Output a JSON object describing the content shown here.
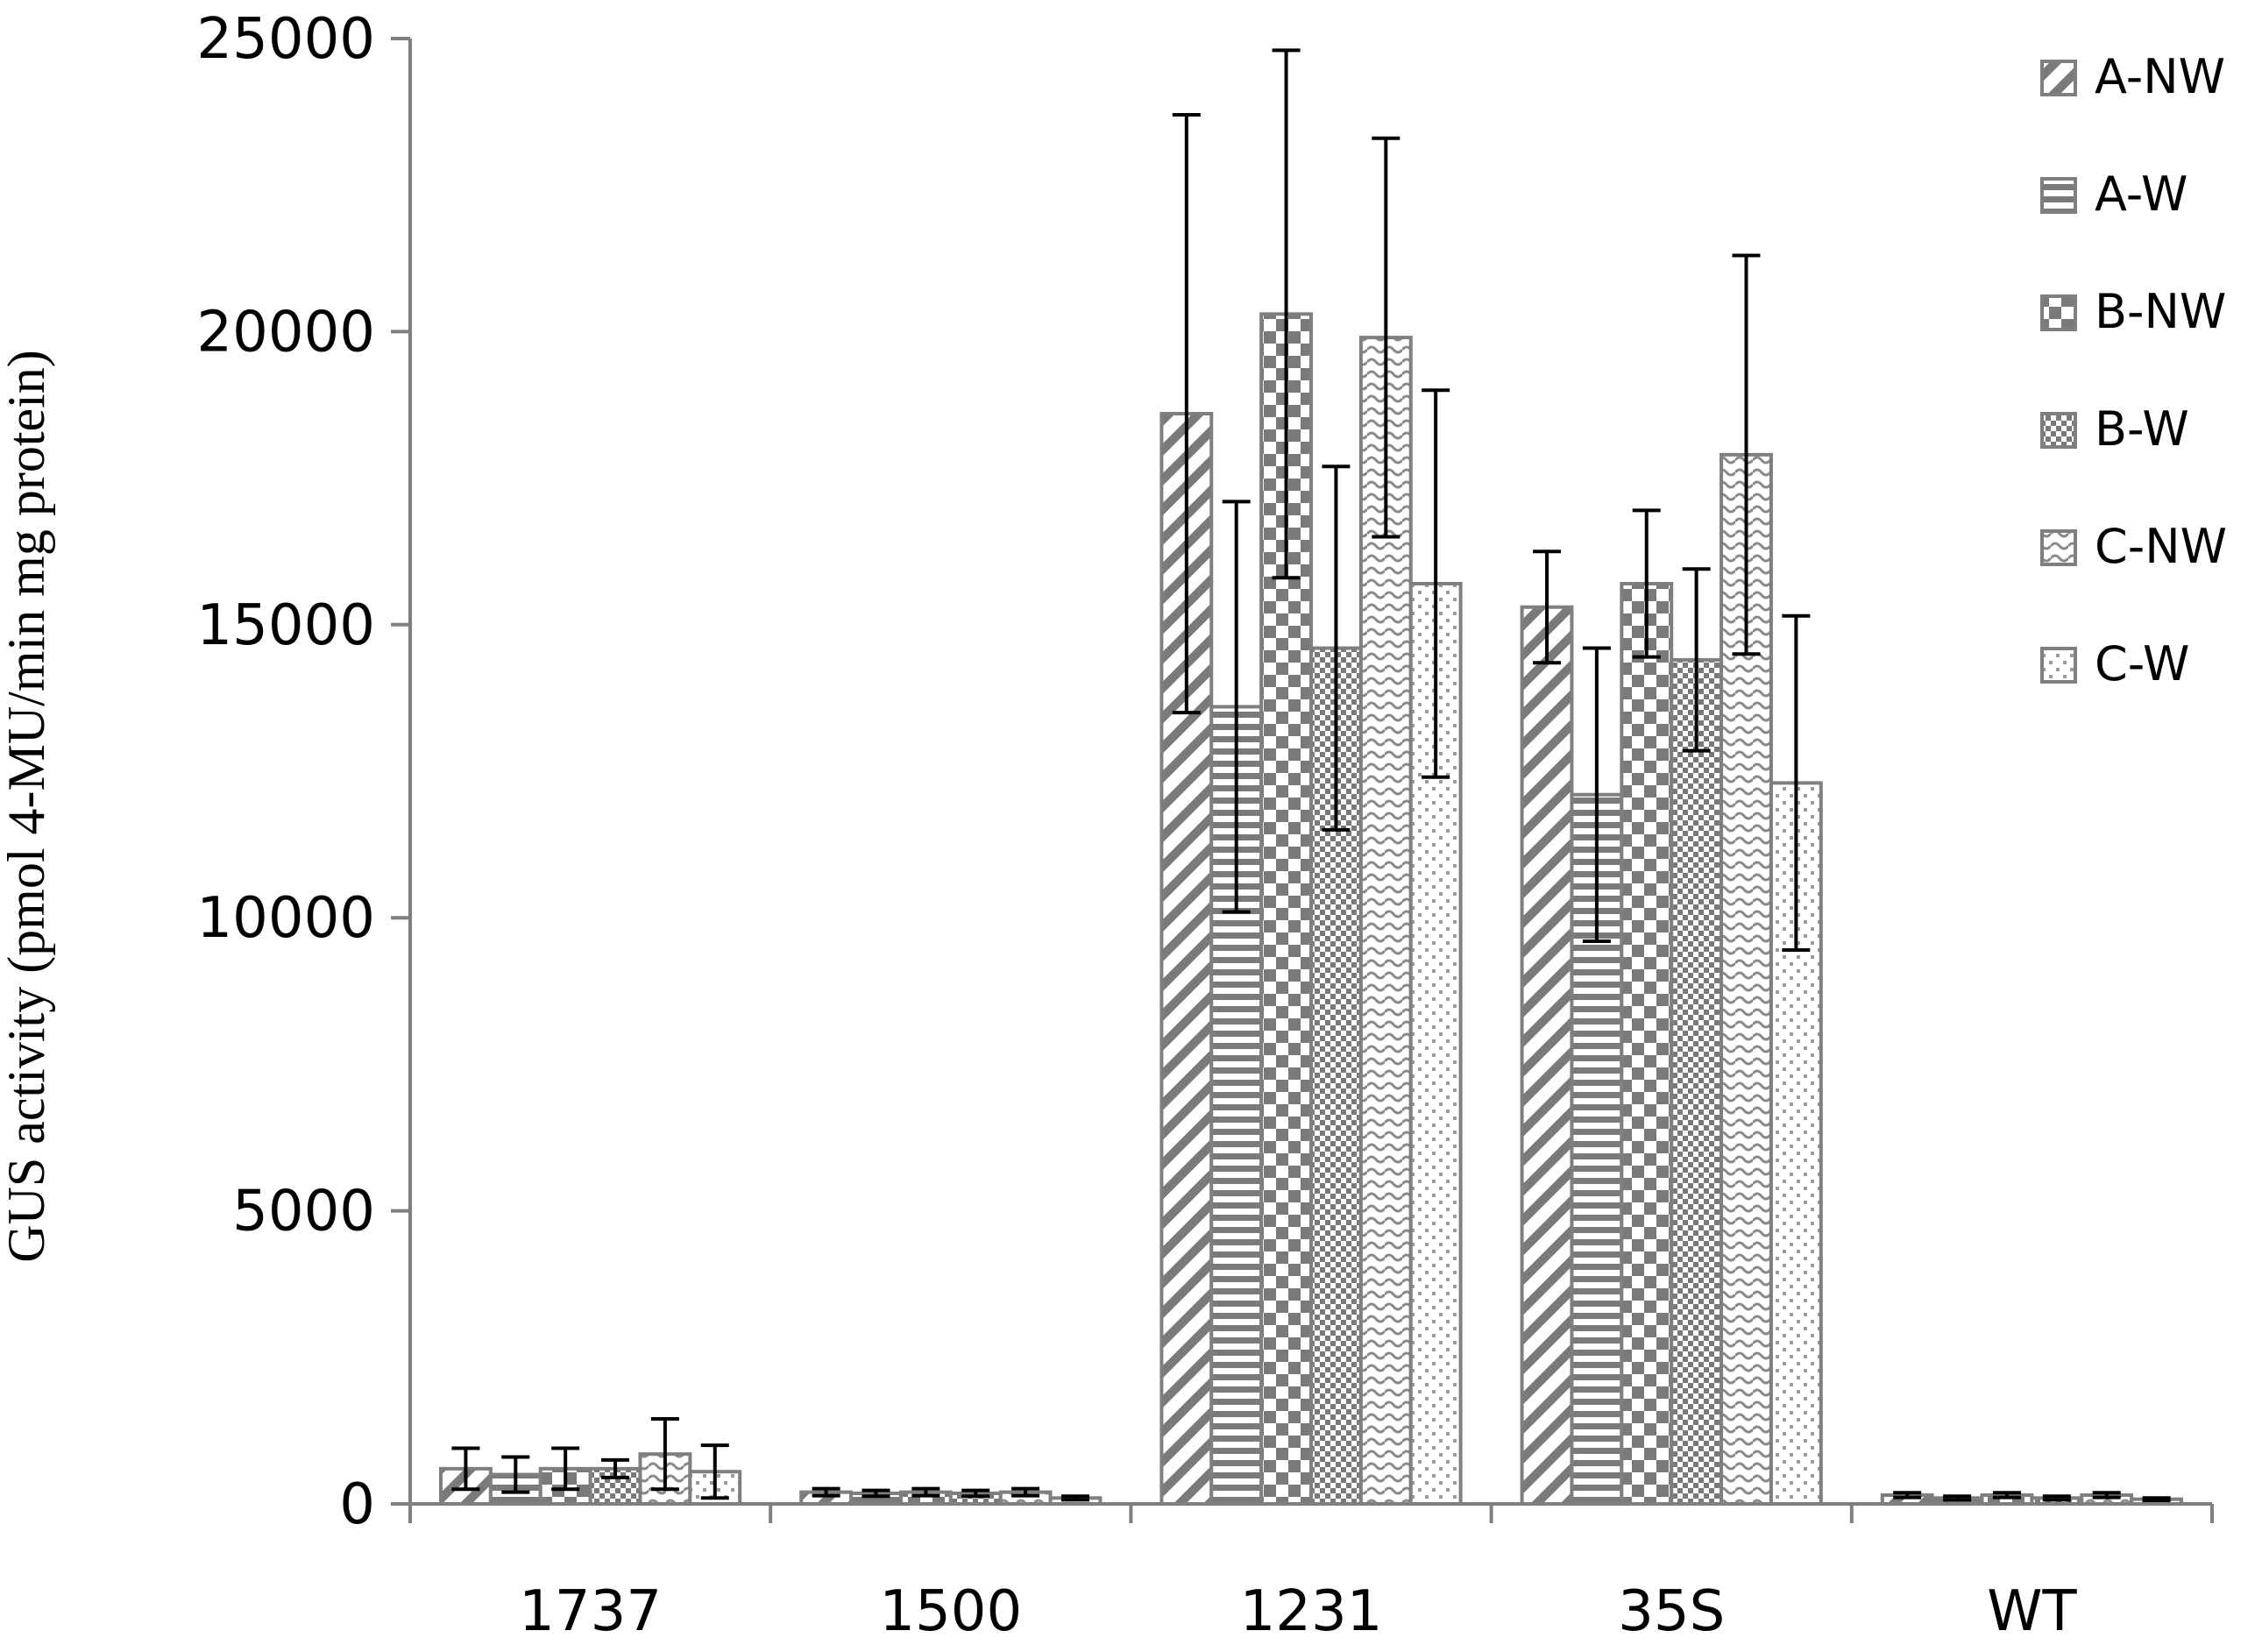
{
  "chart_data": {
    "type": "bar",
    "title": "",
    "xlabel": "",
    "ylabel": "GUS activity  (pmol  4-MU/min  mg protein)",
    "ylim": [
      0,
      25000
    ],
    "yticks": [
      0,
      5000,
      10000,
      15000,
      20000,
      25000
    ],
    "categories": [
      "1737",
      "1500",
      "1231",
      "35S",
      "WT"
    ],
    "legend_position": "top-right",
    "grid": false,
    "series": [
      {
        "name": "A-NW",
        "pattern": "diag-stripes",
        "values": [
          600,
          200,
          18600,
          15300,
          150
        ],
        "errors": [
          350,
          60,
          5100,
          950,
          40
        ]
      },
      {
        "name": "A-W",
        "pattern": "horizontal-stripes",
        "values": [
          500,
          180,
          13600,
          12100,
          100
        ],
        "errors": [
          300,
          50,
          3500,
          2500,
          30
        ]
      },
      {
        "name": "B-NW",
        "pattern": "large-checker",
        "values": [
          600,
          200,
          20300,
          15700,
          150
        ],
        "errors": [
          350,
          60,
          4500,
          1250,
          40
        ]
      },
      {
        "name": "B-W",
        "pattern": "small-checker",
        "values": [
          600,
          180,
          14600,
          14400,
          100
        ],
        "errors": [
          150,
          50,
          3100,
          1550,
          30
        ]
      },
      {
        "name": "C-NW",
        "pattern": "wavy",
        "values": [
          850,
          200,
          19900,
          17900,
          150
        ],
        "errors": [
          600,
          60,
          3400,
          3400,
          40
        ]
      },
      {
        "name": "C-W",
        "pattern": "dots",
        "values": [
          550,
          100,
          15700,
          12300,
          80
        ],
        "errors": [
          450,
          30,
          3300,
          2850,
          20
        ]
      }
    ],
    "colors": {
      "axis": "#7f7f7f",
      "bar_stroke": "#7f7f7f",
      "pattern": "#7a7a7a",
      "error_bar": "#000000"
    }
  }
}
